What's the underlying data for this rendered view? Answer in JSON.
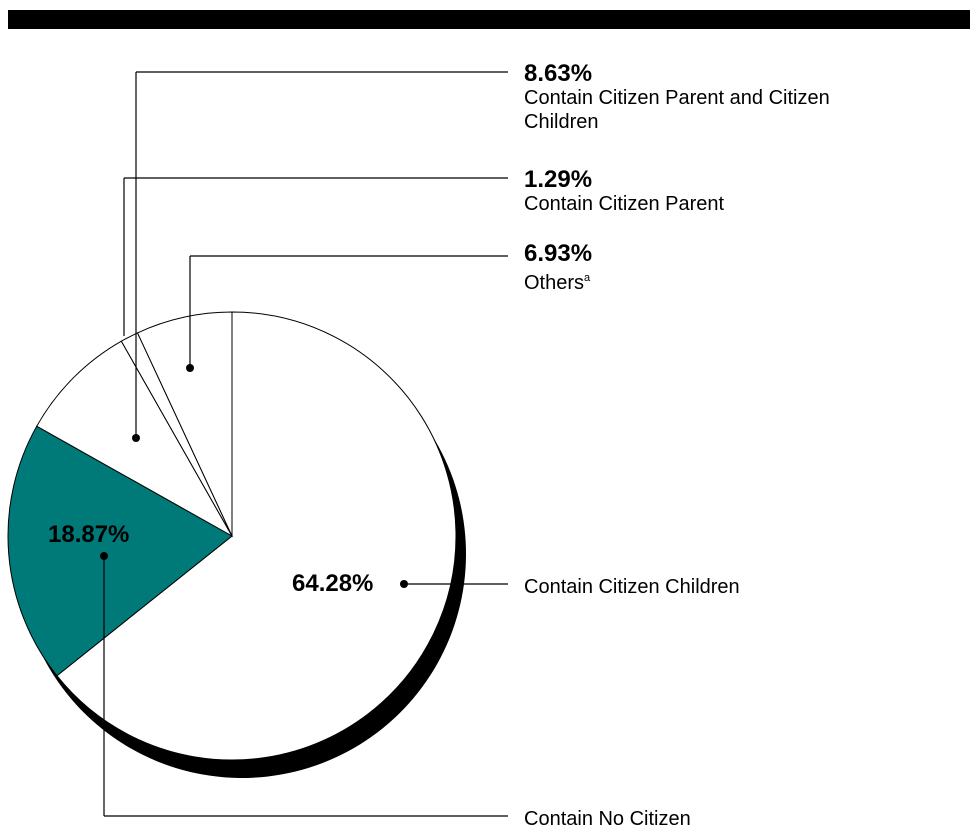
{
  "chart_data": {
    "type": "pie",
    "slices": [
      {
        "label": "Contain Citizen Children",
        "value": 64.28,
        "value_label": "64.28%",
        "color": "#ffffff"
      },
      {
        "label": "Contain No Citizen",
        "value": 18.87,
        "value_label": "18.87%",
        "color": "#007a78"
      },
      {
        "label": "Contain Citizen Parent and Citizen Children",
        "value": 8.63,
        "value_label": "8.63%",
        "color": "#ffffff"
      },
      {
        "label": "Contain Citizen Parent",
        "value": 1.29,
        "value_label": "1.29%",
        "color": "#ffffff"
      },
      {
        "label": "Others",
        "label_superscript": "a",
        "value": 6.93,
        "value_label": "6.93%",
        "color": "#ffffff"
      }
    ]
  }
}
